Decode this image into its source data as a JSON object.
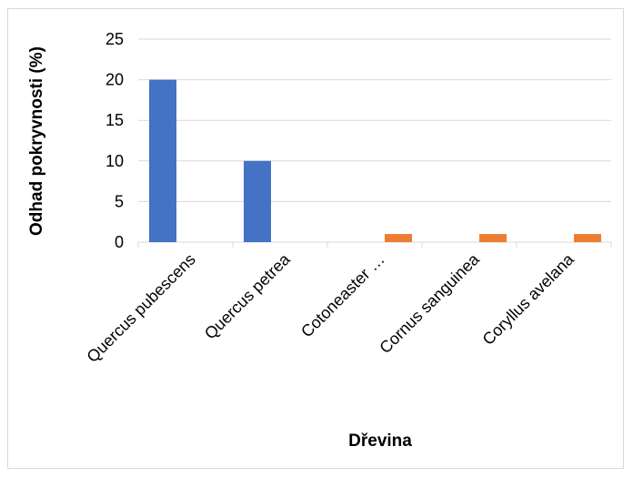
{
  "chart_data": {
    "type": "bar",
    "categories": [
      "Quercus pubescens",
      "Quercus petrea",
      "Cotoneaster …",
      "Cornus sanguinea",
      "Coryllus avelana"
    ],
    "series": [
      {
        "values": [
          20,
          10,
          0,
          0,
          0
        ],
        "color": "#4472c4"
      },
      {
        "values": [
          0,
          0,
          1,
          1,
          1
        ],
        "color": "#ed7d31"
      }
    ],
    "xlabel": "Dřevina",
    "ylabel": "Odhad pokryvnosti (%)",
    "ylim": [
      0,
      25
    ],
    "yticks": [
      "0",
      "5",
      "10",
      "15",
      "20",
      "25"
    ],
    "grid": true
  }
}
